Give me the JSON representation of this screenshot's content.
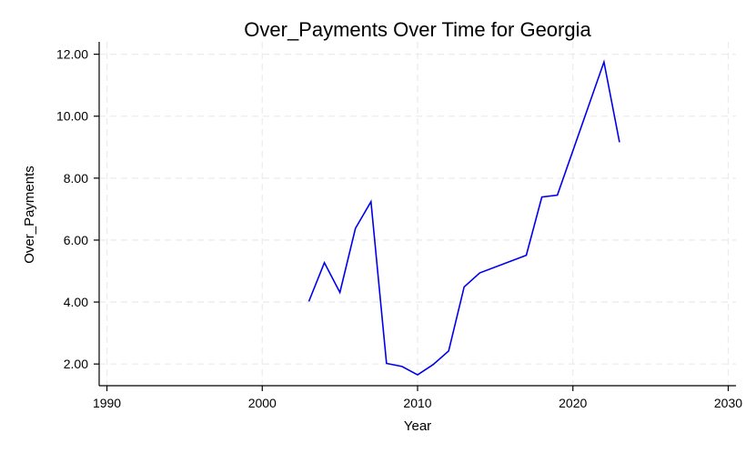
{
  "chart_data": {
    "type": "line",
    "title": "Over_Payments Over Time for Georgia",
    "xlabel": "Year",
    "ylabel": "Over_Payments",
    "xlim": [
      1989.5,
      2030.5
    ],
    "ylim": [
      1.3,
      12.4
    ],
    "xticks": [
      1990,
      2000,
      2010,
      2020,
      2030
    ],
    "xtick_labels": [
      "1990",
      "2000",
      "2010",
      "2020",
      "2030"
    ],
    "yticks": [
      2,
      4,
      6,
      8,
      10,
      12
    ],
    "ytick_labels": [
      "2.00",
      "4.00",
      "6.00",
      "8.00",
      "10.00",
      "12.00"
    ],
    "grid": true,
    "series": [
      {
        "color": "#0000ee",
        "x": [
          2003,
          2004,
          2005,
          2006,
          2007,
          2008,
          2009,
          2010,
          2011,
          2012,
          2013,
          2014,
          2017,
          2018,
          2019,
          2022,
          2023
        ],
        "y": [
          4.02,
          5.27,
          4.31,
          6.38,
          7.24,
          2.02,
          1.92,
          1.65,
          1.98,
          2.42,
          4.49,
          4.94,
          5.51,
          7.39,
          7.45,
          11.75,
          9.16
        ]
      }
    ]
  }
}
